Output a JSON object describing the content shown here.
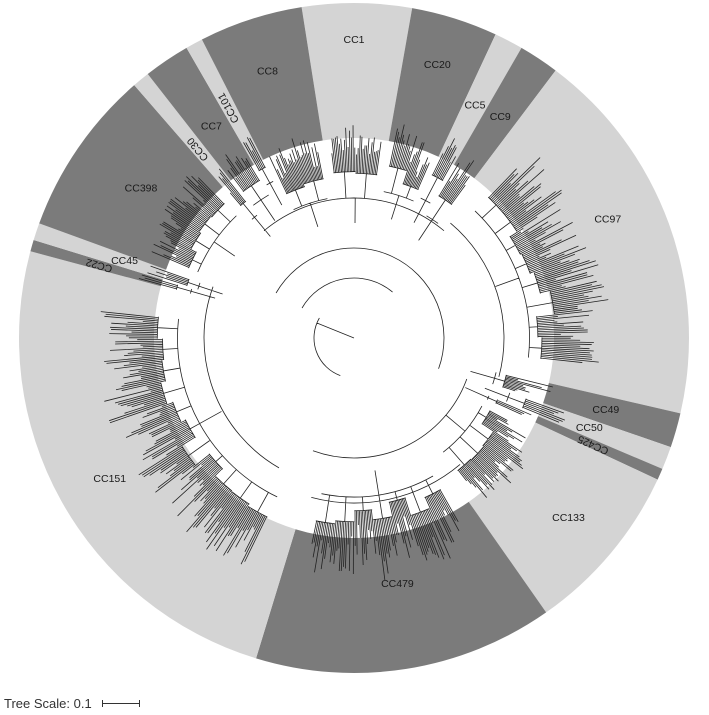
{
  "colors": {
    "light_band": "#d4d4d4",
    "dark_band": "#7b7b7b",
    "branch": "#222222"
  },
  "clades": [
    {
      "label": "CC1",
      "shade": "light"
    },
    {
      "label": "CC20",
      "shade": "dark"
    },
    {
      "label": "CC5",
      "shade": "light"
    },
    {
      "label": "CC9",
      "shade": "dark"
    },
    {
      "label": "CC97",
      "shade": "light"
    },
    {
      "label": "CC49",
      "shade": "dark"
    },
    {
      "label": "CC50",
      "shade": "light"
    },
    {
      "label": "CC425",
      "shade": "dark"
    },
    {
      "label": "CC133",
      "shade": "light"
    },
    {
      "label": "CC479",
      "shade": "dark"
    },
    {
      "label": "CC151",
      "shade": "light"
    },
    {
      "label": "CC22",
      "shade": "dark"
    },
    {
      "label": "CC45",
      "shade": "light"
    },
    {
      "label": "CC398",
      "shade": "dark"
    },
    {
      "label": "CC30",
      "shade": "light"
    },
    {
      "label": "CC7",
      "shade": "dark"
    },
    {
      "label": "CC101",
      "shade": "light"
    },
    {
      "label": "CC8",
      "shade": "dark"
    }
  ],
  "scale": {
    "label": "Tree Scale: 0.1"
  }
}
